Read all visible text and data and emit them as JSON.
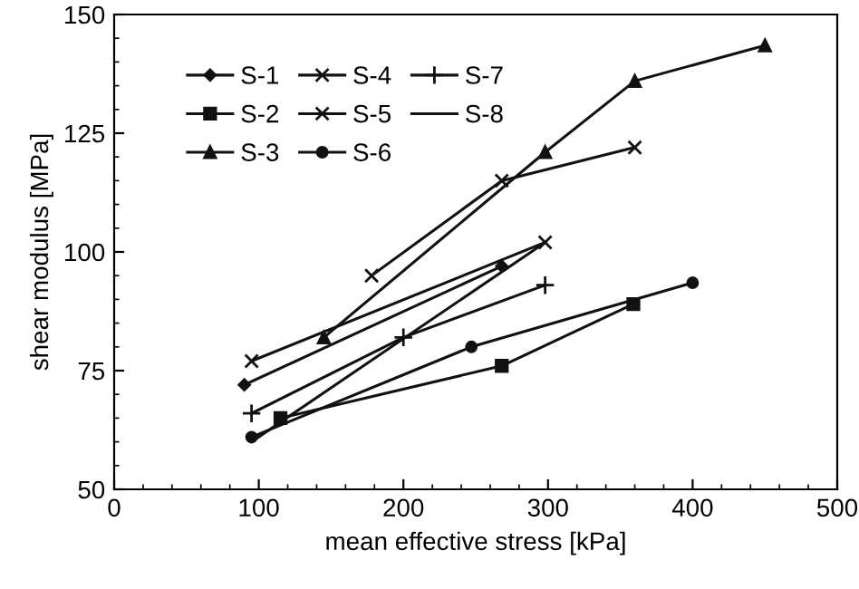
{
  "chart_data": {
    "type": "line",
    "xlabel": "mean effective stress [kPa]",
    "ylabel": "shear modulus [MPa]",
    "xlim": [
      0,
      500
    ],
    "xticks": [
      0,
      100,
      200,
      300,
      400,
      500
    ],
    "ylim": [
      50,
      150
    ],
    "yticks": [
      50,
      75,
      100,
      125,
      150
    ],
    "grid": false,
    "legend": "top left",
    "line_style": "solid",
    "series": [
      {
        "name": "S-1",
        "color": "#111111",
        "marker": "diamond",
        "x": [
          90,
          268
        ],
        "values": [
          72,
          97
        ]
      },
      {
        "name": "S-2",
        "color": "#111111",
        "marker": "square",
        "x": [
          115,
          268,
          359
        ],
        "values": [
          65,
          76,
          89
        ]
      },
      {
        "name": "S-3",
        "color": "#111111",
        "marker": "triangle",
        "x": [
          145,
          298,
          360,
          450
        ],
        "values": [
          82,
          121,
          136,
          143.5
        ]
      },
      {
        "name": "S-4",
        "color": "#111111",
        "marker": "cross",
        "x": [
          95,
          298
        ],
        "values": [
          77,
          102
        ]
      },
      {
        "name": "S-5",
        "color": "#111111",
        "marker": "cross",
        "x": [
          178,
          268,
          360
        ],
        "values": [
          95,
          115,
          122
        ]
      },
      {
        "name": "S-6",
        "color": "#111111",
        "marker": "circle",
        "x": [
          95,
          247,
          400
        ],
        "values": [
          61,
          80,
          93.5
        ]
      },
      {
        "name": "S-7",
        "color": "#111111",
        "marker": "plus",
        "x": [
          95,
          200,
          298
        ],
        "values": [
          66,
          82,
          93
        ]
      },
      {
        "name": "S-8",
        "color": "#111111",
        "marker": "none",
        "x": [
          95,
          298
        ],
        "values": [
          60,
          102
        ]
      }
    ]
  }
}
